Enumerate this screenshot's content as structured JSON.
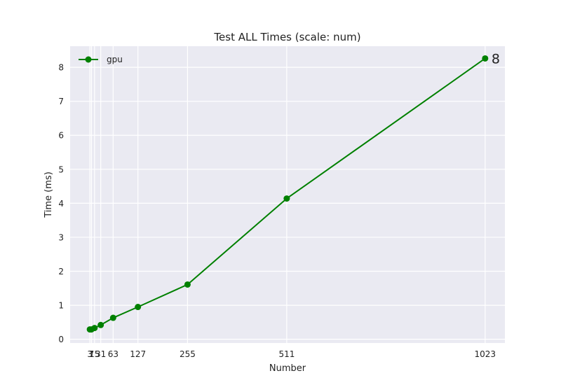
{
  "chart_data": {
    "type": "line",
    "title": "Test ALL Times (scale: num)",
    "xlabel": "Number",
    "ylabel": "Time (ms)",
    "x": [
      3,
      7,
      15,
      31,
      63,
      127,
      255,
      511,
      1023
    ],
    "x_tick_labels": [
      "3",
      "7",
      "15",
      "31",
      "63",
      "127",
      "255",
      "511",
      "1023"
    ],
    "xlim": [
      -48,
      1074
    ],
    "y_ticks": [
      0,
      1,
      2,
      3,
      4,
      5,
      6,
      7,
      8
    ],
    "ylim": [
      -0.11,
      8.62
    ],
    "series": [
      {
        "name": "gpu",
        "color": "#008000",
        "values": [
          0.29,
          0.29,
          0.33,
          0.42,
          0.63,
          0.95,
          1.61,
          4.14,
          8.26
        ]
      }
    ],
    "annotations": [
      {
        "text": "8",
        "x": 1023,
        "y": 8.26
      }
    ],
    "legend": {
      "position": "top-left"
    },
    "grid": true,
    "colors": {
      "plot_background": "#eaeaf2",
      "grid": "#ffffff",
      "line": "#008000"
    }
  }
}
